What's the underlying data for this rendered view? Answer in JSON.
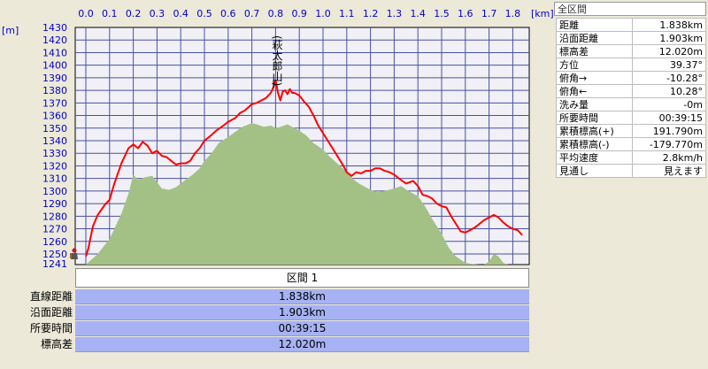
{
  "chart_data": {
    "type": "area",
    "xlabel": "[km]",
    "ylabel": "[m]",
    "xlim": [
      0,
      1.85
    ],
    "ylim": [
      1241,
      1430
    ],
    "x_ticks": [
      "0.0",
      "0.1",
      "0.2",
      "0.3",
      "0.4",
      "0.5",
      "0.6",
      "0.7",
      "0.8",
      "0.9",
      "1.0",
      "1.1",
      "1.2",
      "1.3",
      "1.4",
      "1.5",
      "1.6",
      "1.7",
      "1.8"
    ],
    "y_ticks": [
      "1430",
      "1420",
      "1410",
      "1400",
      "1390",
      "1380",
      "1370",
      "1360",
      "1350",
      "1340",
      "1330",
      "1320",
      "1310",
      "1300",
      "1290",
      "1280",
      "1270",
      "1260",
      "1250",
      "1241"
    ],
    "peak_label": "(萩太郎山)",
    "series": [
      {
        "x": [
          0.0,
          0.01,
          0.03,
          0.05,
          0.08,
          0.1,
          0.12,
          0.15,
          0.18,
          0.2,
          0.22,
          0.24,
          0.26,
          0.28,
          0.3,
          0.32,
          0.34,
          0.36,
          0.38,
          0.4,
          0.42,
          0.44,
          0.46,
          0.48,
          0.5,
          0.52,
          0.55,
          0.58,
          0.6,
          0.63,
          0.65,
          0.67,
          0.7,
          0.72,
          0.74,
          0.76,
          0.78,
          0.79,
          0.8,
          0.81,
          0.82,
          0.83,
          0.84,
          0.85,
          0.86,
          0.87,
          0.88,
          0.89,
          0.9,
          0.92,
          0.94,
          0.96,
          0.98,
          1.0,
          1.02,
          1.05,
          1.08,
          1.1,
          1.12,
          1.14,
          1.16,
          1.18,
          1.2,
          1.22,
          1.24,
          1.26,
          1.28,
          1.3,
          1.32,
          1.35,
          1.38,
          1.4,
          1.42,
          1.44,
          1.46,
          1.48,
          1.5,
          1.52,
          1.54,
          1.56,
          1.58,
          1.6,
          1.61,
          1.62,
          1.64,
          1.66,
          1.68,
          1.7,
          1.72,
          1.74,
          1.76,
          1.78,
          1.8,
          1.82,
          1.84
        ],
        "values": [
          1248,
          1254,
          1272,
          1281,
          1289,
          1293,
          1306,
          1322,
          1334,
          1337,
          1334,
          1339,
          1336,
          1330,
          1332,
          1328,
          1327,
          1324,
          1321,
          1322,
          1322,
          1324,
          1330,
          1334,
          1340,
          1343,
          1348,
          1352,
          1355,
          1358,
          1362,
          1364,
          1369,
          1370,
          1372,
          1374,
          1378,
          1382,
          1388,
          1378,
          1372,
          1379,
          1380,
          1377,
          1381,
          1378,
          1378,
          1377,
          1376,
          1371,
          1367,
          1360,
          1352,
          1346,
          1340,
          1331,
          1322,
          1315,
          1312,
          1315,
          1314,
          1316,
          1316,
          1318,
          1318,
          1316,
          1315,
          1313,
          1310,
          1306,
          1308,
          1304,
          1297,
          1296,
          1294,
          1290,
          1288,
          1287,
          1280,
          1274,
          1268,
          1267,
          1268,
          1269,
          1271,
          1274,
          1277,
          1279,
          1281,
          1279,
          1275,
          1272,
          1270,
          1269,
          1265
        ]
      },
      {
        "x": [
          0.0,
          0.05,
          0.1,
          0.12,
          0.15,
          0.18,
          0.2,
          0.22,
          0.25,
          0.28,
          0.3,
          0.32,
          0.35,
          0.38,
          0.4,
          0.42,
          0.45,
          0.48,
          0.5,
          0.53,
          0.56,
          0.6,
          0.63,
          0.66,
          0.7,
          0.72,
          0.75,
          0.78,
          0.8,
          0.82,
          0.85,
          0.88,
          0.9,
          0.93,
          0.96,
          1.0,
          1.03,
          1.06,
          1.1,
          1.13,
          1.16,
          1.2,
          1.23,
          1.26,
          1.3,
          1.33,
          1.36,
          1.4,
          1.43,
          1.46,
          1.5,
          1.53,
          1.56,
          1.6,
          1.63,
          1.66,
          1.68,
          1.7,
          1.72,
          1.74,
          1.76,
          1.78,
          1.8,
          1.82,
          1.84
        ],
        "values": [
          1241,
          1250,
          1262,
          1270,
          1282,
          1298,
          1313,
          1309,
          1311,
          1312,
          1307,
          1302,
          1301,
          1303,
          1306,
          1309,
          1313,
          1318,
          1324,
          1330,
          1338,
          1343,
          1347,
          1351,
          1354,
          1353,
          1351,
          1352,
          1350,
          1351,
          1353,
          1350,
          1348,
          1344,
          1338,
          1333,
          1327,
          1322,
          1315,
          1309,
          1305,
          1301,
          1299,
          1300,
          1302,
          1304,
          1300,
          1296,
          1288,
          1278,
          1266,
          1255,
          1248,
          1243,
          1242,
          1241,
          1241,
          1244,
          1250,
          1248,
          1243,
          1241,
          1241,
          1241,
          1241
        ]
      }
    ],
    "grid": true
  },
  "stats": {
    "title": "全区間",
    "rows": [
      {
        "label": "距離",
        "value": "1.838km"
      },
      {
        "label": "沿面距離",
        "value": "1.903km"
      },
      {
        "label": "標高差",
        "value": "12.020m"
      },
      {
        "label": "方位",
        "value": "39.37°"
      },
      {
        "label": "俯角→",
        "value": "-10.28°"
      },
      {
        "label": "俯角←",
        "value": "10.28°"
      },
      {
        "label": "洗み量",
        "value": "-0m"
      },
      {
        "label": "所要時間",
        "value": "00:39:15"
      },
      {
        "label": "累積標高(+)",
        "value": "191.790m"
      },
      {
        "label": "累積標高(-)",
        "value": "-179.770m"
      },
      {
        "label": "平均速度",
        "value": "2.8km/h"
      },
      {
        "label": "見通し",
        "value": "見えます"
      }
    ]
  },
  "section": {
    "header": "区間 1",
    "rows": [
      {
        "label": "直線距離",
        "value": "1.838km"
      },
      {
        "label": "沿面距離",
        "value": "1.903km"
      },
      {
        "label": "所要時間",
        "value": "00:39:15"
      },
      {
        "label": "標高差",
        "value": "12.020m"
      }
    ]
  },
  "colors": {
    "plot_bg": "#f0f0f6",
    "grid": "#4a50a0",
    "terrain": "#a3c185",
    "route": "#ff0000",
    "axis_text": "#0000cc",
    "section_bg": "#a6b2f3"
  }
}
